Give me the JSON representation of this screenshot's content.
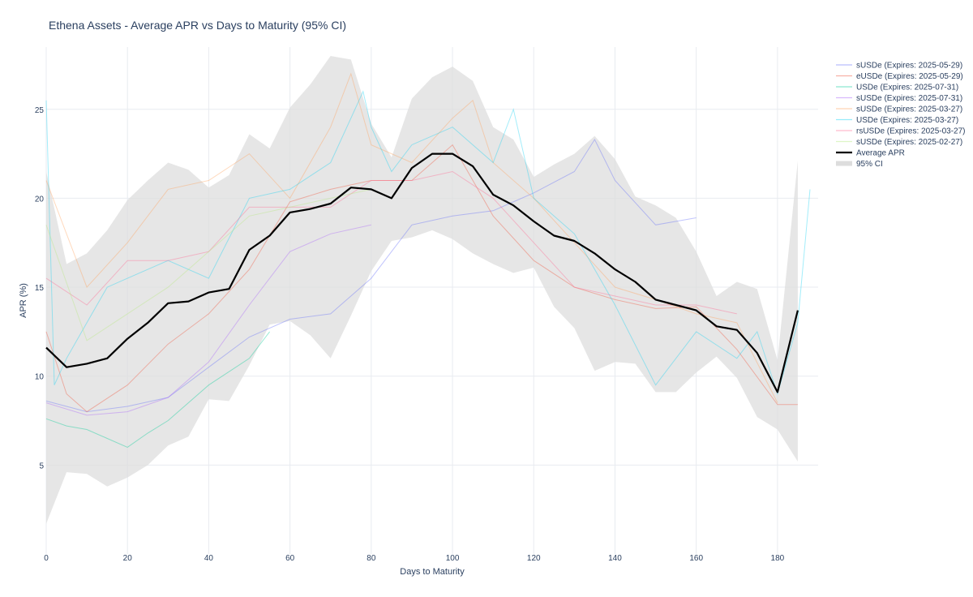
{
  "chart_data": {
    "type": "line",
    "title": "Ethena Assets - Average APR vs Days to Maturity (95% CI)",
    "xlabel": "Days to Maturity",
    "ylabel": "APR (%)",
    "xlim": [
      0,
      190
    ],
    "ylim": [
      0,
      28.5
    ],
    "xticks": [
      0,
      20,
      40,
      60,
      80,
      100,
      120,
      140,
      160,
      180
    ],
    "yticks": [
      5,
      10,
      15,
      20,
      25
    ],
    "grid": true,
    "legend_position": "right",
    "series": [
      {
        "name": "sUSDe (Expires: 2025-05-29)",
        "color": "#636efa",
        "x": [
          0,
          10,
          20,
          30,
          40,
          50,
          60,
          70,
          80,
          90,
          100,
          110,
          120,
          130,
          135,
          140,
          150,
          160
        ],
        "y": [
          8.6,
          8.0,
          8.3,
          8.8,
          10.5,
          12.2,
          13.2,
          13.5,
          15.5,
          18.5,
          19.0,
          19.3,
          20.3,
          21.5,
          23.3,
          21.0,
          18.5,
          18.9
        ]
      },
      {
        "name": "eUSDe (Expires: 2025-05-29)",
        "color": "#ef553b",
        "x": [
          0,
          5,
          10,
          20,
          30,
          40,
          50,
          60,
          70,
          80,
          90,
          100,
          110,
          120,
          130,
          140,
          150,
          160,
          170,
          180,
          185
        ],
        "y": [
          12.5,
          9.0,
          8.0,
          9.5,
          11.8,
          13.5,
          16.0,
          19.8,
          20.5,
          21.0,
          21.0,
          23.0,
          19.0,
          16.5,
          15.0,
          14.3,
          13.8,
          13.9,
          11.5,
          8.4,
          8.4
        ]
      },
      {
        "name": "USDe (Expires: 2025-07-31)",
        "color": "#00cc96",
        "x": [
          0,
          5,
          10,
          15,
          20,
          25,
          30,
          40,
          50,
          55
        ],
        "y": [
          7.6,
          7.2,
          7.0,
          6.5,
          6.0,
          6.8,
          7.5,
          9.5,
          11.0,
          12.5
        ]
      },
      {
        "name": "sUSDe (Expires: 2025-07-31)",
        "color": "#ab63fa",
        "x": [
          0,
          10,
          20,
          30,
          40,
          50,
          60,
          70,
          80
        ],
        "y": [
          8.5,
          7.8,
          8.0,
          8.8,
          10.8,
          14.0,
          17.0,
          18.0,
          18.5
        ]
      },
      {
        "name": "sUSDe (Expires: 2025-03-27)",
        "color": "#ffa15a",
        "x": [
          0,
          10,
          20,
          30,
          40,
          50,
          60,
          70,
          75,
          80,
          90,
          100,
          105,
          110,
          120,
          130,
          140,
          150,
          160,
          170,
          180
        ],
        "y": [
          21.0,
          15.0,
          17.5,
          20.5,
          21.0,
          22.5,
          20.0,
          24.0,
          27.0,
          23.0,
          22.0,
          24.5,
          25.5,
          22.0,
          20.0,
          17.5,
          15.0,
          14.3,
          13.5,
          13.0,
          8.5
        ]
      },
      {
        "name": "USDe (Expires: 2025-03-27)",
        "color": "#19d3f3",
        "x": [
          0,
          2,
          5,
          10,
          15,
          20,
          30,
          40,
          50,
          60,
          70,
          75,
          78,
          80,
          85,
          90,
          100,
          110,
          115,
          120,
          130,
          140,
          150,
          160,
          170,
          175,
          180,
          185,
          188
        ],
        "y": [
          25.5,
          9.5,
          11.0,
          13.0,
          15.0,
          15.5,
          16.5,
          15.5,
          20.0,
          20.5,
          22.0,
          24.5,
          26.0,
          24.0,
          21.5,
          23.0,
          24.0,
          22.0,
          25.0,
          20.0,
          18.0,
          14.0,
          9.5,
          12.5,
          11.0,
          12.5,
          9.0,
          13.0,
          20.5
        ]
      },
      {
        "name": "rsUSDe (Expires: 2025-03-27)",
        "color": "#ff6692",
        "x": [
          0,
          10,
          20,
          30,
          40,
          50,
          60,
          70,
          80,
          90,
          100,
          110,
          120,
          130,
          140,
          150,
          160,
          170
        ],
        "y": [
          15.5,
          14.0,
          16.5,
          16.5,
          17.0,
          19.5,
          19.5,
          19.5,
          21.0,
          21.0,
          21.5,
          20.0,
          17.5,
          15.0,
          14.5,
          14.0,
          14.0,
          13.5
        ]
      },
      {
        "name": "sUSDe (Expires: 2025-02-27)",
        "color": "#b6e880",
        "x": [
          0,
          10,
          20,
          30,
          40,
          50,
          60,
          70,
          80
        ],
        "y": [
          18.5,
          12.0,
          13.5,
          15.0,
          17.0,
          19.0,
          19.5,
          20.0,
          20.5
        ]
      }
    ],
    "average": {
      "name": "Average APR",
      "color": "#000000",
      "x": [
        0,
        5,
        10,
        15,
        20,
        25,
        30,
        35,
        40,
        45,
        50,
        55,
        60,
        65,
        70,
        75,
        80,
        85,
        90,
        95,
        100,
        105,
        110,
        115,
        120,
        125,
        130,
        135,
        140,
        145,
        150,
        155,
        160,
        165,
        170,
        175,
        180,
        185
      ],
      "y": [
        11.6,
        10.5,
        10.7,
        11.0,
        12.1,
        13.0,
        14.1,
        14.2,
        14.7,
        14.9,
        17.1,
        17.9,
        19.2,
        19.4,
        19.7,
        20.6,
        20.5,
        20.0,
        21.7,
        22.5,
        22.5,
        21.8,
        20.2,
        19.6,
        18.7,
        17.9,
        17.6,
        16.9,
        16.0,
        15.3,
        14.3,
        14.0,
        13.7,
        12.8,
        12.6,
        11.3,
        9.1,
        13.7
      ]
    },
    "ci": {
      "name": "95% CI",
      "color": "#dddddd",
      "upper": [
        21.5,
        16.3,
        16.9,
        18.2,
        19.9,
        21.0,
        22.0,
        21.6,
        20.6,
        21.3,
        23.6,
        22.8,
        25.1,
        26.4,
        28.0,
        27.8,
        24.2,
        22.3,
        25.6,
        26.8,
        27.4,
        26.6,
        24.0,
        23.3,
        21.2,
        21.9,
        22.5,
        23.5,
        22.2,
        20.1,
        19.6,
        18.9,
        17.0,
        14.5,
        15.3,
        14.9,
        10.9,
        22.1
      ],
      "lower": [
        1.7,
        4.6,
        4.5,
        3.8,
        4.3,
        5.0,
        6.1,
        6.6,
        8.7,
        8.6,
        10.6,
        12.9,
        13.1,
        12.3,
        11.0,
        13.4,
        15.9,
        17.6,
        17.8,
        18.2,
        17.7,
        16.9,
        16.3,
        15.8,
        16.1,
        13.9,
        12.7,
        10.3,
        10.8,
        10.7,
        9.1,
        9.1,
        10.2,
        11.1,
        9.9,
        7.7,
        7.0,
        5.2
      ]
    }
  }
}
